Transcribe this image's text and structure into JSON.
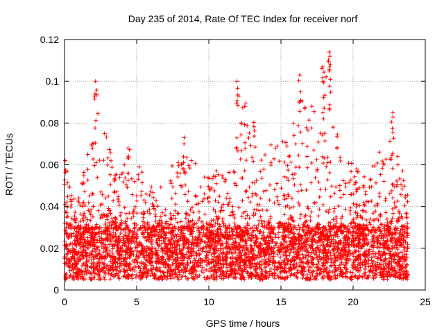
{
  "chart_data": {
    "type": "scatter",
    "title": "Day 235 of 2014, Rate Of TEC Index for receiver norf",
    "xlabel": "GPS time / hours",
    "ylabel": "ROTI / TECUs",
    "xlim": [
      0,
      25
    ],
    "ylim": [
      0,
      0.12
    ],
    "xticks": [
      0,
      5,
      10,
      15,
      20,
      25
    ],
    "xtick_labels": [
      "0",
      "5",
      "10",
      "15",
      "20",
      "25"
    ],
    "yticks": [
      0,
      0.02,
      0.04,
      0.06,
      0.08,
      0.1,
      0.12
    ],
    "ytick_labels": [
      "0",
      "0.02",
      "0.04",
      "0.06",
      "0.08",
      "0.1",
      "0.12"
    ],
    "grid": true,
    "marker": "+",
    "color": "#ff0000",
    "x_span": [
      0,
      23.8
    ],
    "baseline_band": [
      0.005,
      0.03
    ],
    "envelope": [
      {
        "x": 0,
        "y": 0.06
      },
      {
        "x": 1,
        "y": 0.045
      },
      {
        "x": 2.2,
        "y": 0.1
      },
      {
        "x": 3.5,
        "y": 0.055
      },
      {
        "x": 4.5,
        "y": 0.068
      },
      {
        "x": 6,
        "y": 0.05
      },
      {
        "x": 7,
        "y": 0.06
      },
      {
        "x": 8.3,
        "y": 0.074
      },
      {
        "x": 9.5,
        "y": 0.055
      },
      {
        "x": 11,
        "y": 0.06
      },
      {
        "x": 11.9,
        "y": 0.1
      },
      {
        "x": 12.6,
        "y": 0.095
      },
      {
        "x": 13.5,
        "y": 0.07
      },
      {
        "x": 15,
        "y": 0.07
      },
      {
        "x": 16.3,
        "y": 0.103
      },
      {
        "x": 17,
        "y": 0.09
      },
      {
        "x": 17.8,
        "y": 0.107
      },
      {
        "x": 18.3,
        "y": 0.114
      },
      {
        "x": 19,
        "y": 0.07
      },
      {
        "x": 20,
        "y": 0.06
      },
      {
        "x": 21,
        "y": 0.055
      },
      {
        "x": 22.8,
        "y": 0.085
      },
      {
        "x": 23.5,
        "y": 0.055
      },
      {
        "x": 23.8,
        "y": 0.05
      }
    ],
    "notable_points": [
      {
        "x": 2.15,
        "y": 0.1
      },
      {
        "x": 11.95,
        "y": 0.1
      },
      {
        "x": 16.3,
        "y": 0.103
      },
      {
        "x": 17.9,
        "y": 0.107
      },
      {
        "x": 18.35,
        "y": 0.114
      },
      {
        "x": 18.4,
        "y": 0.112
      },
      {
        "x": 22.75,
        "y": 0.085
      },
      {
        "x": 8.3,
        "y": 0.073
      },
      {
        "x": 4.4,
        "y": 0.068
      },
      {
        "x": 0.05,
        "y": 0.062
      }
    ],
    "point_count": 4500,
    "seed": 235
  }
}
